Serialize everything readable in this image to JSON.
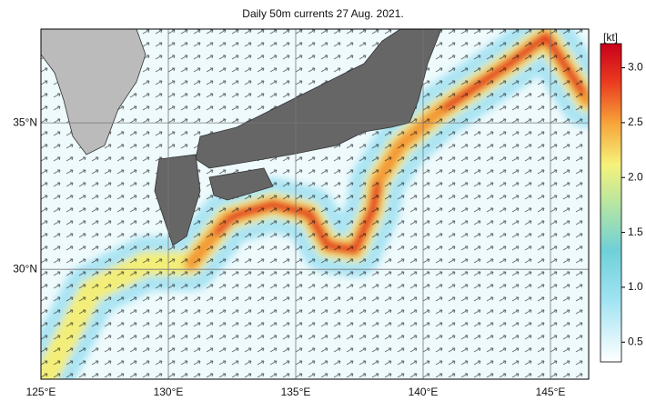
{
  "title": "Daily 50m currents 27 Aug. 2021.",
  "map": {
    "xlim": [
      125,
      146.5
    ],
    "xticks": [
      {
        "value": 125,
        "label": "125°E"
      },
      {
        "value": 130,
        "label": "130°E"
      },
      {
        "value": 135,
        "label": "135°E"
      },
      {
        "value": 140,
        "label": "140°E"
      },
      {
        "value": 145,
        "label": "145°E"
      }
    ],
    "ylim": [
      26.25,
      38.2
    ],
    "yticks": [
      {
        "value": 30,
        "label": "30°N"
      },
      {
        "value": 35,
        "label": "35°N"
      }
    ]
  },
  "colorbar": {
    "label": "[kt]",
    "lim": [
      0.32,
      3.22
    ],
    "ticks": [
      0.5,
      {
        "value": 1,
        "label": "1.0"
      },
      1.5,
      {
        "value": 2,
        "label": "2.0"
      },
      2.5,
      {
        "value": 3,
        "label": "3.0"
      }
    ]
  }
}
